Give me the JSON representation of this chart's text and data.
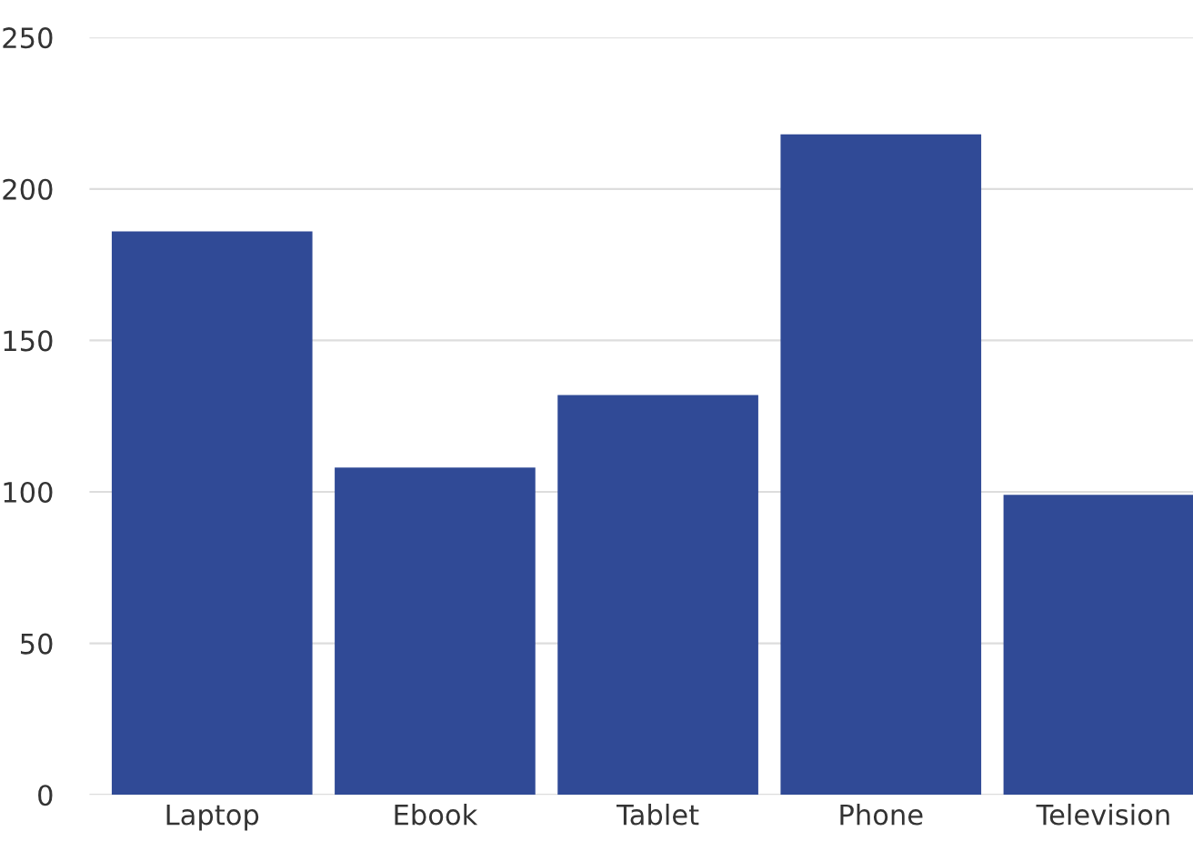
{
  "chart_data": {
    "type": "bar",
    "categories": [
      "Laptop",
      "Ebook",
      "Tablet",
      "Phone",
      "Television"
    ],
    "values": [
      186,
      108,
      132,
      218,
      99
    ],
    "color": "#304a96",
    "ylim": [
      0,
      250
    ],
    "yticks": [
      0,
      50,
      100,
      150,
      200,
      250
    ],
    "grid": "y",
    "legend": false
  }
}
